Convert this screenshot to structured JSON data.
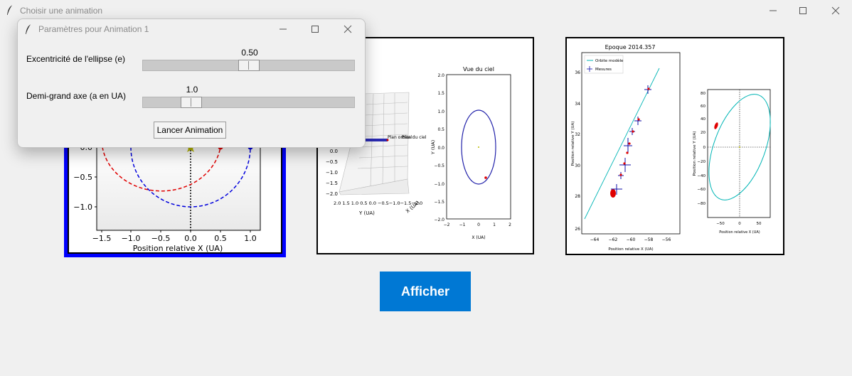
{
  "main_window": {
    "title": "Choisir une animation",
    "afficher_label": "Afficher"
  },
  "thumbnails": [
    {
      "id": "animation-1",
      "selected": true,
      "x_ticks": [
        "−1.5",
        "−1.0",
        "−0.5",
        "0.0",
        "0.5",
        "1.0"
      ],
      "y_ticks": [
        "0.0",
        "−0.5",
        "−1.0"
      ],
      "xlabel": "Position relative X (UA)"
    },
    {
      "id": "animation-2",
      "selected": false,
      "plane_label": "Plan orbital",
      "sky_plane_label": "Plan du ciel",
      "sky_title": "Vue du ciel",
      "sky_xlabel": "X (UA)",
      "sky_ylabel": "Y (UA)",
      "sky_x_ticks": [
        "−2",
        "−1",
        "0",
        "1",
        "2"
      ],
      "sky_y_ticks": [
        "2.0",
        "1.5",
        "1.0",
        "0.5",
        "0.0",
        "−0.5",
        "−1.0",
        "−1.5",
        "−2.0"
      ],
      "d3_y_ticks": [
        "0.0",
        "−0.5",
        "−1.0",
        "−1.5",
        "−2.0"
      ],
      "d3_bottom_ticks": "2.0 1.5 1.0 0.5 0.0 −0.5−1.0−1.5−2.0",
      "d3_ylabel": "Y (UA)",
      "d3_xlabel": "X (UA)"
    },
    {
      "id": "animation-3",
      "selected": false,
      "title": "Epoque 2014.357",
      "legend_model": "Orbite modèle",
      "legend_measures": "Mesures",
      "left_xlabel": "Position relative X (UA)",
      "left_ylabel": "Position relative Y (UA)",
      "left_x_ticks": [
        "−64",
        "−62",
        "−60",
        "−58",
        "−56"
      ],
      "left_y_ticks": [
        "36",
        "34",
        "32",
        "30",
        "28",
        "26"
      ],
      "right_xlabel": "Position relative X (UA)",
      "right_ylabel": "Position relative Y (UA)",
      "right_x_ticks": [
        "−50",
        "0",
        "50"
      ],
      "right_y_ticks": [
        "80",
        "60",
        "40",
        "20",
        "0",
        "−20",
        "−40",
        "−60",
        "−80"
      ]
    }
  ],
  "dialog": {
    "title": "Paramètres pour Animation 1",
    "eccentricity": {
      "label": "Excentricité de l'ellipse (e)",
      "value": "0.50",
      "fraction": 0.5
    },
    "semi_major": {
      "label": "Demi-grand axe (a en UA)",
      "value": "1.0",
      "fraction": 0.2
    },
    "launch_label": "Lancer Animation"
  },
  "colors": {
    "accent": "#0078d4",
    "selected_border": "#0000ff"
  }
}
